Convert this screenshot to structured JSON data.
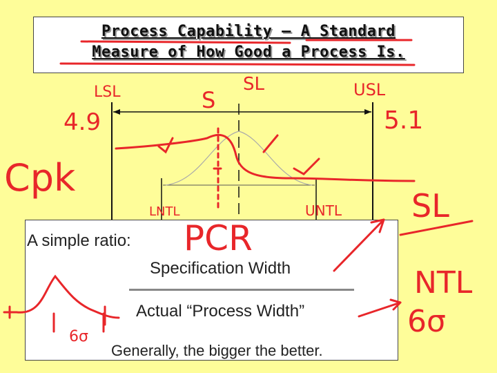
{
  "slide": {
    "title_line1": "Process Capability – A Standard",
    "title_line2": "Measure of How Good a Process Is."
  },
  "ratio": {
    "lead": "A simple ratio:",
    "numerator": "Specification Width",
    "denominator": "Actual “Process Width”",
    "note": "Generally, the bigger the better."
  },
  "ink": {
    "color": "#e8262a",
    "lsl": "LSL",
    "lsl_value": "4.9",
    "usl": "USL",
    "usl_value": "5.1",
    "s": "S",
    "sl": "SL",
    "cpk": "Cpk",
    "lntl": "LNTL",
    "untl": "UNTL",
    "pcr": "PCR",
    "sl_right": "SL",
    "ntl": "NTL",
    "six_sigma": "6σ",
    "six_sigma_small": "6σ"
  },
  "colors": {
    "background": "#fefd99",
    "box": "#ffffff",
    "text": "#222222"
  }
}
